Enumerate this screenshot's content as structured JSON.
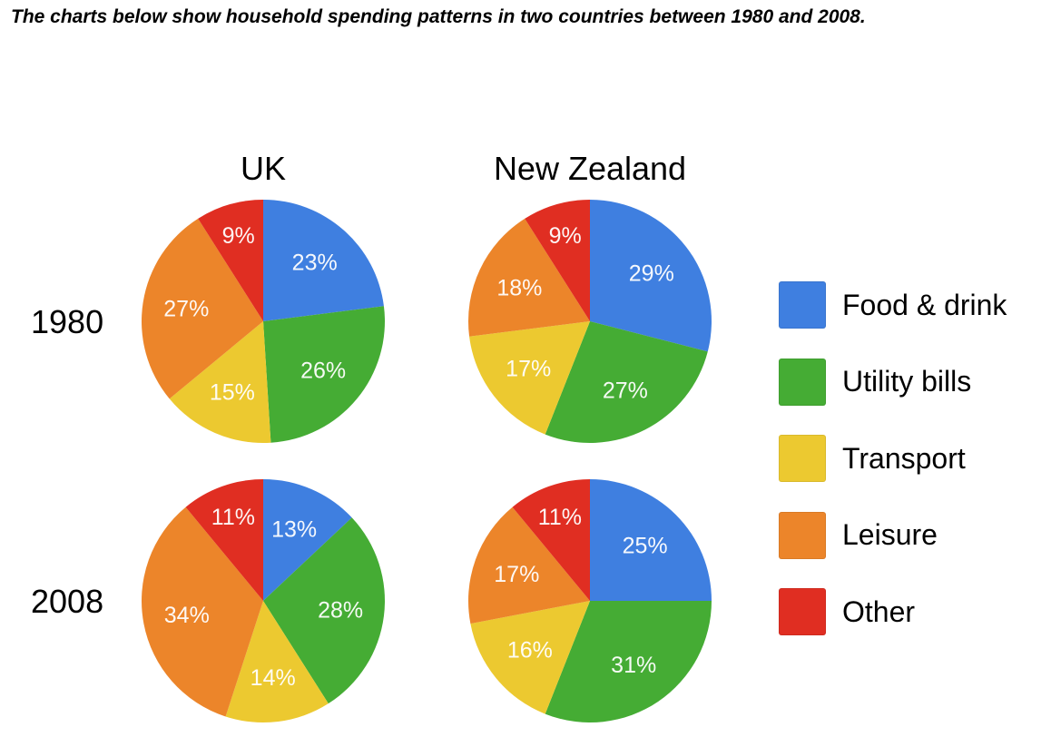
{
  "prompt": "The charts below show household spending patterns in two countries between 1980 and 2008.",
  "chart_data": {
    "type": "pie",
    "columns": [
      "UK",
      "New Zealand"
    ],
    "rows": [
      "1980",
      "2008"
    ],
    "categories": [
      "Food & drink",
      "Utility bills",
      "Transport",
      "Leisure",
      "Other"
    ],
    "colors": [
      "#3f7fe0",
      "#45ac34",
      "#ecc930",
      "#ec852a",
      "#e02e22"
    ],
    "pies": [
      {
        "country": "UK",
        "year": "1980",
        "values": [
          23,
          26,
          15,
          27,
          9
        ],
        "labels": [
          "23%",
          "26%",
          "15%",
          "27%",
          "9%"
        ]
      },
      {
        "country": "New Zealand",
        "year": "1980",
        "values": [
          29,
          27,
          17,
          18,
          9
        ],
        "labels": [
          "29%",
          "27%",
          "17%",
          "18%",
          "9%"
        ]
      },
      {
        "country": "UK",
        "year": "2008",
        "values": [
          13,
          28,
          14,
          34,
          11
        ],
        "labels": [
          "13%",
          "28%",
          "14%",
          "34%",
          "11%"
        ]
      },
      {
        "country": "New Zealand",
        "year": "2008",
        "values": [
          25,
          31,
          16,
          17,
          11
        ],
        "labels": [
          "25%",
          "31%",
          "16%",
          "17%",
          "11%"
        ]
      }
    ],
    "legend": [
      {
        "label": "Food & drink",
        "color": "#3f7fe0"
      },
      {
        "label": "Utility bills",
        "color": "#45ac34"
      },
      {
        "label": "Transport",
        "color": "#ecc930"
      },
      {
        "label": "Leisure",
        "color": "#ec852a"
      },
      {
        "label": "Other",
        "color": "#e02e22"
      }
    ],
    "legend_position": "right"
  }
}
